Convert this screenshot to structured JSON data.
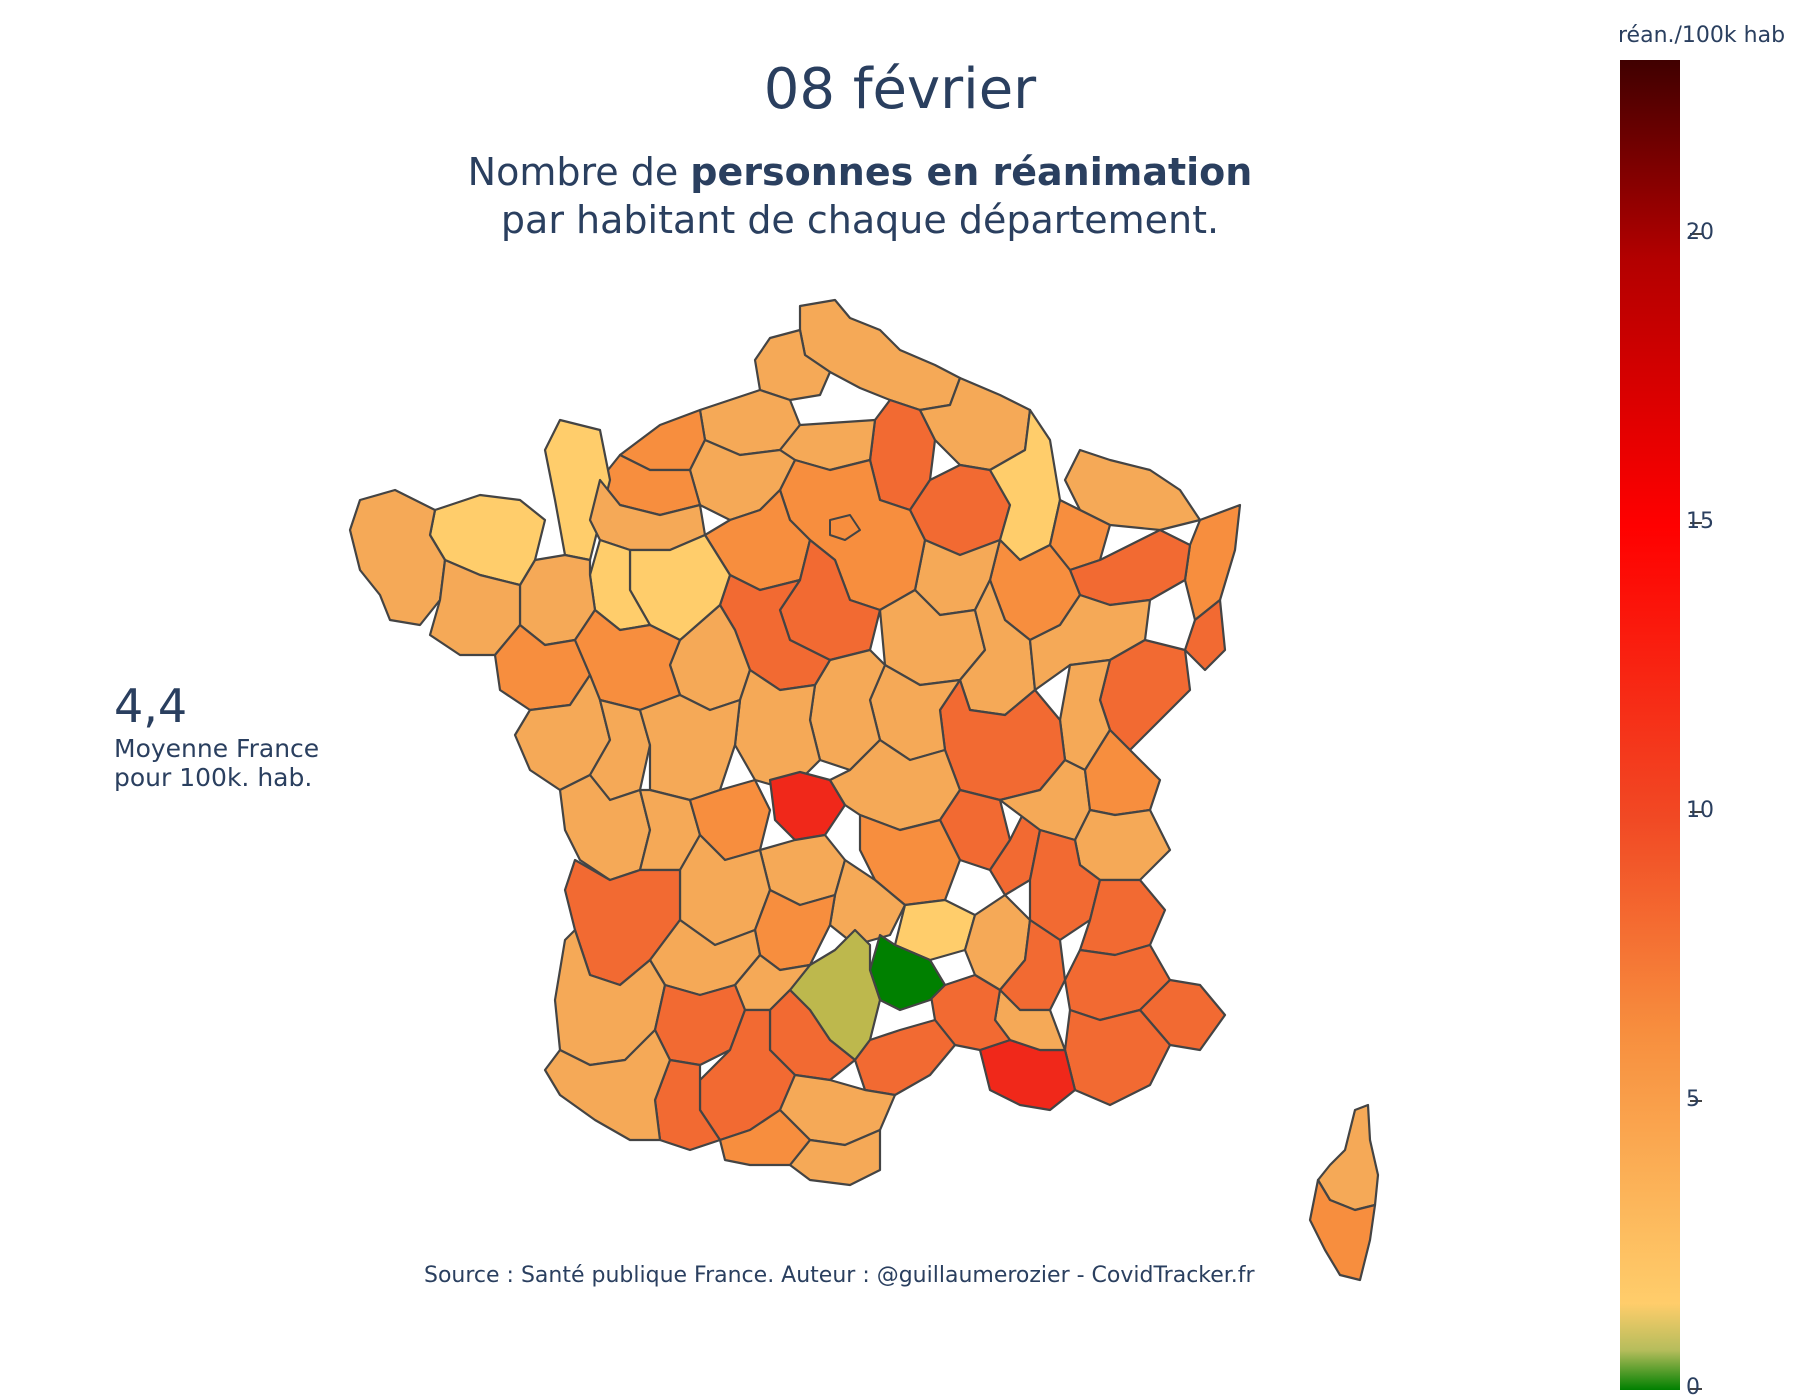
{
  "title": "08 février",
  "subtitle": {
    "prefix": "Nombre de ",
    "bold": "personnes en réanimation",
    "line2": "par habitant de chaque département."
  },
  "average": {
    "value": "4,4",
    "label_line1": "Moyenne France",
    "label_line2": "pour 100k. hab."
  },
  "source": "Source : Santé publique France. Auteur : @guillaumerozier - CovidTracker.fr",
  "colorbar": {
    "title": "réan./100k hab",
    "ticks": [
      "0",
      "5",
      "10",
      "15",
      "20"
    ],
    "range": [
      0,
      23
    ],
    "colors": [
      "#008000",
      "#ffcd6b",
      "#f78e3e",
      "#f14924",
      "#ff0000",
      "#400000"
    ]
  },
  "colors": {
    "text": "#2a3f5f",
    "border": "#444444",
    "light": "#ffcd6b",
    "mid": "#f5a957",
    "orange": "#f78e3e",
    "dark_orange": "#f26a32",
    "red": "#f0281a",
    "olive": "#bdb84d",
    "green": "#008000"
  }
}
